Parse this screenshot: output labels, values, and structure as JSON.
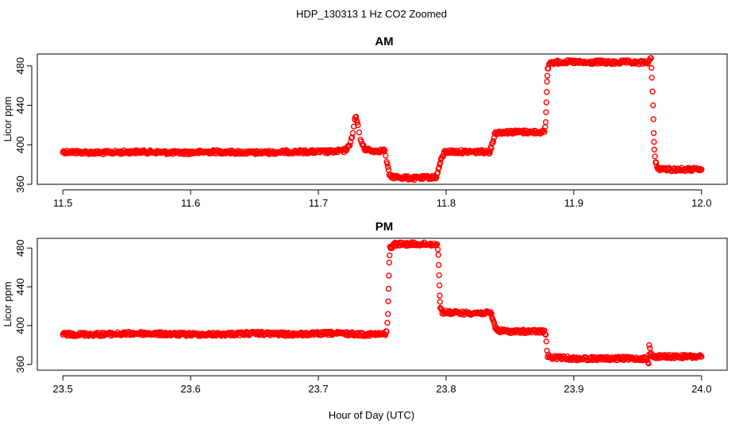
{
  "figure_title": "HDP_130313  1 Hz CO2 Zoomed",
  "shared_xlabel": "Hour of Day (UTC)",
  "chart_data": [
    {
      "type": "scatter",
      "title": "AM",
      "xlabel": "",
      "ylabel": "Licor ppm",
      "xlim": [
        11.48,
        12.02
      ],
      "ylim": [
        360,
        492
      ],
      "xticks": [
        11.5,
        11.6,
        11.7,
        11.8,
        11.9,
        12.0
      ],
      "xtick_labels": [
        "11.5",
        "11.6",
        "11.7",
        "11.8",
        "11.9",
        "12.0"
      ],
      "yticks": [
        360,
        400,
        440,
        480
      ],
      "ytick_labels": [
        "360",
        "400",
        "440",
        "480"
      ],
      "marker": "open-circle",
      "color": "#ff0000",
      "grid": false,
      "series": [
        {
          "points": [
            [
              11.5,
              393
            ],
            [
              11.53,
              392
            ],
            [
              11.56,
              393
            ],
            [
              11.59,
              392
            ],
            [
              11.62,
              393
            ],
            [
              11.65,
              392
            ],
            [
              11.68,
              393
            ],
            [
              11.71,
              393
            ],
            [
              11.72,
              394
            ],
            [
              11.724,
              398
            ],
            [
              11.727,
              412
            ],
            [
              11.7285,
              425
            ],
            [
              11.7295,
              428
            ],
            [
              11.731,
              420
            ],
            [
              11.733,
              405
            ],
            [
              11.736,
              396
            ],
            [
              11.742,
              394
            ],
            [
              11.752,
              394
            ],
            [
              11.7535,
              384
            ],
            [
              11.7545,
              376
            ],
            [
              11.756,
              368
            ],
            [
              11.765,
              367
            ],
            [
              11.775,
              366
            ],
            [
              11.785,
              367
            ],
            [
              11.792,
              367
            ],
            [
              11.7935,
              372
            ],
            [
              11.795,
              380
            ],
            [
              11.7965,
              386
            ],
            [
              11.799,
              393
            ],
            [
              11.81,
              393
            ],
            [
              11.82,
              393
            ],
            [
              11.834,
              393
            ],
            [
              11.8355,
              398
            ],
            [
              11.837,
              405
            ],
            [
              11.838,
              412
            ],
            [
              11.845,
              413
            ],
            [
              11.855,
              413
            ],
            [
              11.865,
              413
            ],
            [
              11.877,
              413
            ],
            [
              11.878,
              423
            ],
            [
              11.8785,
              443
            ],
            [
              11.879,
              464
            ],
            [
              11.8795,
              476
            ],
            [
              11.881,
              483
            ],
            [
              11.89,
              484
            ],
            [
              11.9,
              484
            ],
            [
              11.91,
              483
            ],
            [
              11.92,
              484
            ],
            [
              11.93,
              483
            ],
            [
              11.94,
              484
            ],
            [
              11.95,
              483
            ],
            [
              11.958,
              484
            ],
            [
              11.9605,
              488
            ],
            [
              11.961,
              468
            ],
            [
              11.962,
              440
            ],
            [
              11.9625,
              412
            ],
            [
              11.963,
              394
            ],
            [
              11.9635,
              388
            ],
            [
              11.964,
              382
            ],
            [
              11.966,
              376
            ],
            [
              11.975,
              375
            ],
            [
              11.985,
              375
            ],
            [
              11.995,
              375
            ],
            [
              12.0,
              375
            ]
          ]
        }
      ]
    },
    {
      "type": "scatter",
      "title": "PM",
      "xlabel": "Hour of Day (UTC)",
      "ylabel": "Licor ppm",
      "xlim": [
        23.48,
        24.02
      ],
      "ylim": [
        354,
        490
      ],
      "xticks": [
        23.5,
        23.6,
        23.7,
        23.8,
        23.9,
        24.0
      ],
      "xtick_labels": [
        "23.5",
        "23.6",
        "23.7",
        "23.8",
        "23.9",
        "24.0"
      ],
      "yticks": [
        360,
        400,
        440,
        480
      ],
      "ytick_labels": [
        "360",
        "400",
        "440",
        "480"
      ],
      "marker": "open-circle",
      "color": "#ff0000",
      "grid": false,
      "series": [
        {
          "points": [
            [
              23.5,
              391
            ],
            [
              23.53,
              391
            ],
            [
              23.56,
              392
            ],
            [
              23.59,
              391
            ],
            [
              23.62,
              391
            ],
            [
              23.65,
              392
            ],
            [
              23.68,
              391
            ],
            [
              23.71,
              392
            ],
            [
              23.74,
              391
            ],
            [
              23.752,
              391
            ],
            [
              23.7535,
              394
            ],
            [
              23.7545,
              412
            ],
            [
              23.755,
              438
            ],
            [
              23.7555,
              465
            ],
            [
              23.756,
              480
            ],
            [
              23.76,
              484
            ],
            [
              23.77,
              484
            ],
            [
              23.78,
              484
            ],
            [
              23.79,
              484
            ],
            [
              23.793,
              484
            ],
            [
              23.794,
              473
            ],
            [
              23.7945,
              452
            ],
            [
              23.795,
              431
            ],
            [
              23.7955,
              418
            ],
            [
              23.797,
              414
            ],
            [
              23.81,
              413
            ],
            [
              23.82,
              413
            ],
            [
              23.835,
              413
            ],
            [
              23.837,
              405
            ],
            [
              23.838,
              400
            ],
            [
              23.84,
              395
            ],
            [
              23.85,
              394
            ],
            [
              23.86,
              394
            ],
            [
              23.87,
              394
            ],
            [
              23.877,
              394
            ],
            [
              23.878,
              390
            ],
            [
              23.8785,
              382
            ],
            [
              23.879,
              375
            ],
            [
              23.8795,
              369
            ],
            [
              23.882,
              367
            ],
            [
              23.89,
              367
            ],
            [
              23.9,
              366
            ],
            [
              23.91,
              366
            ],
            [
              23.92,
              366
            ],
            [
              23.93,
              366
            ],
            [
              23.94,
              366
            ],
            [
              23.95,
              366
            ],
            [
              23.957,
              366
            ],
            [
              23.9585,
              361
            ],
            [
              23.959,
              379
            ],
            [
              23.96,
              372
            ],
            [
              23.962,
              368
            ],
            [
              23.97,
              368
            ],
            [
              23.98,
              368
            ],
            [
              23.99,
              368
            ],
            [
              24.0,
              368
            ]
          ]
        }
      ]
    }
  ]
}
